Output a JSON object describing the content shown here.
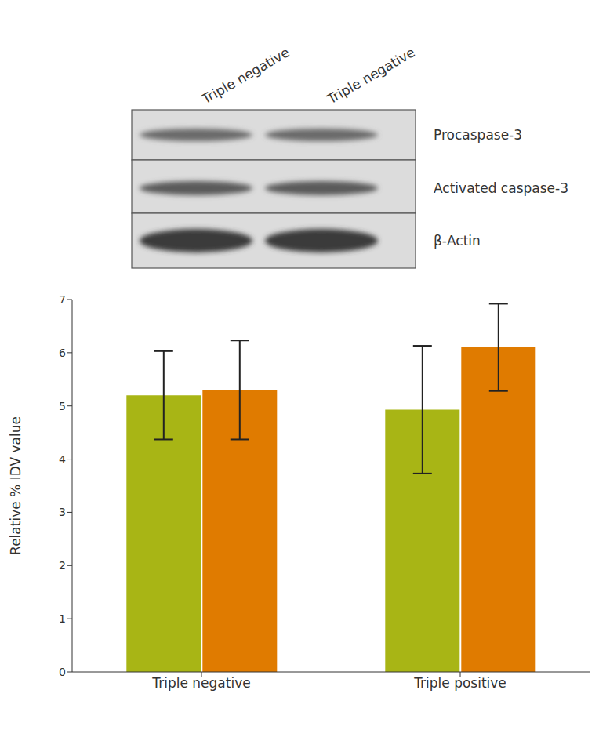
{
  "blot": {
    "lanes": [
      "Triple negative",
      "Triple negative"
    ],
    "rows": [
      "Procaspase-3",
      "Activated caspase-3",
      "β-Actin"
    ]
  },
  "chart_data": {
    "type": "bar",
    "y_label": "Relative % IDV value",
    "categories": [
      "Triple negative",
      "Triple positive"
    ],
    "series": [
      {
        "color": "#a8b515",
        "values": [
          5.2,
          4.93
        ],
        "errors": [
          0.83,
          1.2
        ]
      },
      {
        "color": "#e07b00",
        "values": [
          5.3,
          6.1
        ],
        "errors": [
          0.93,
          0.82
        ]
      }
    ],
    "ylim": [
      0,
      7
    ],
    "yticks": [
      0,
      1,
      2,
      3,
      4,
      5,
      6,
      7
    ],
    "grid": false
  }
}
